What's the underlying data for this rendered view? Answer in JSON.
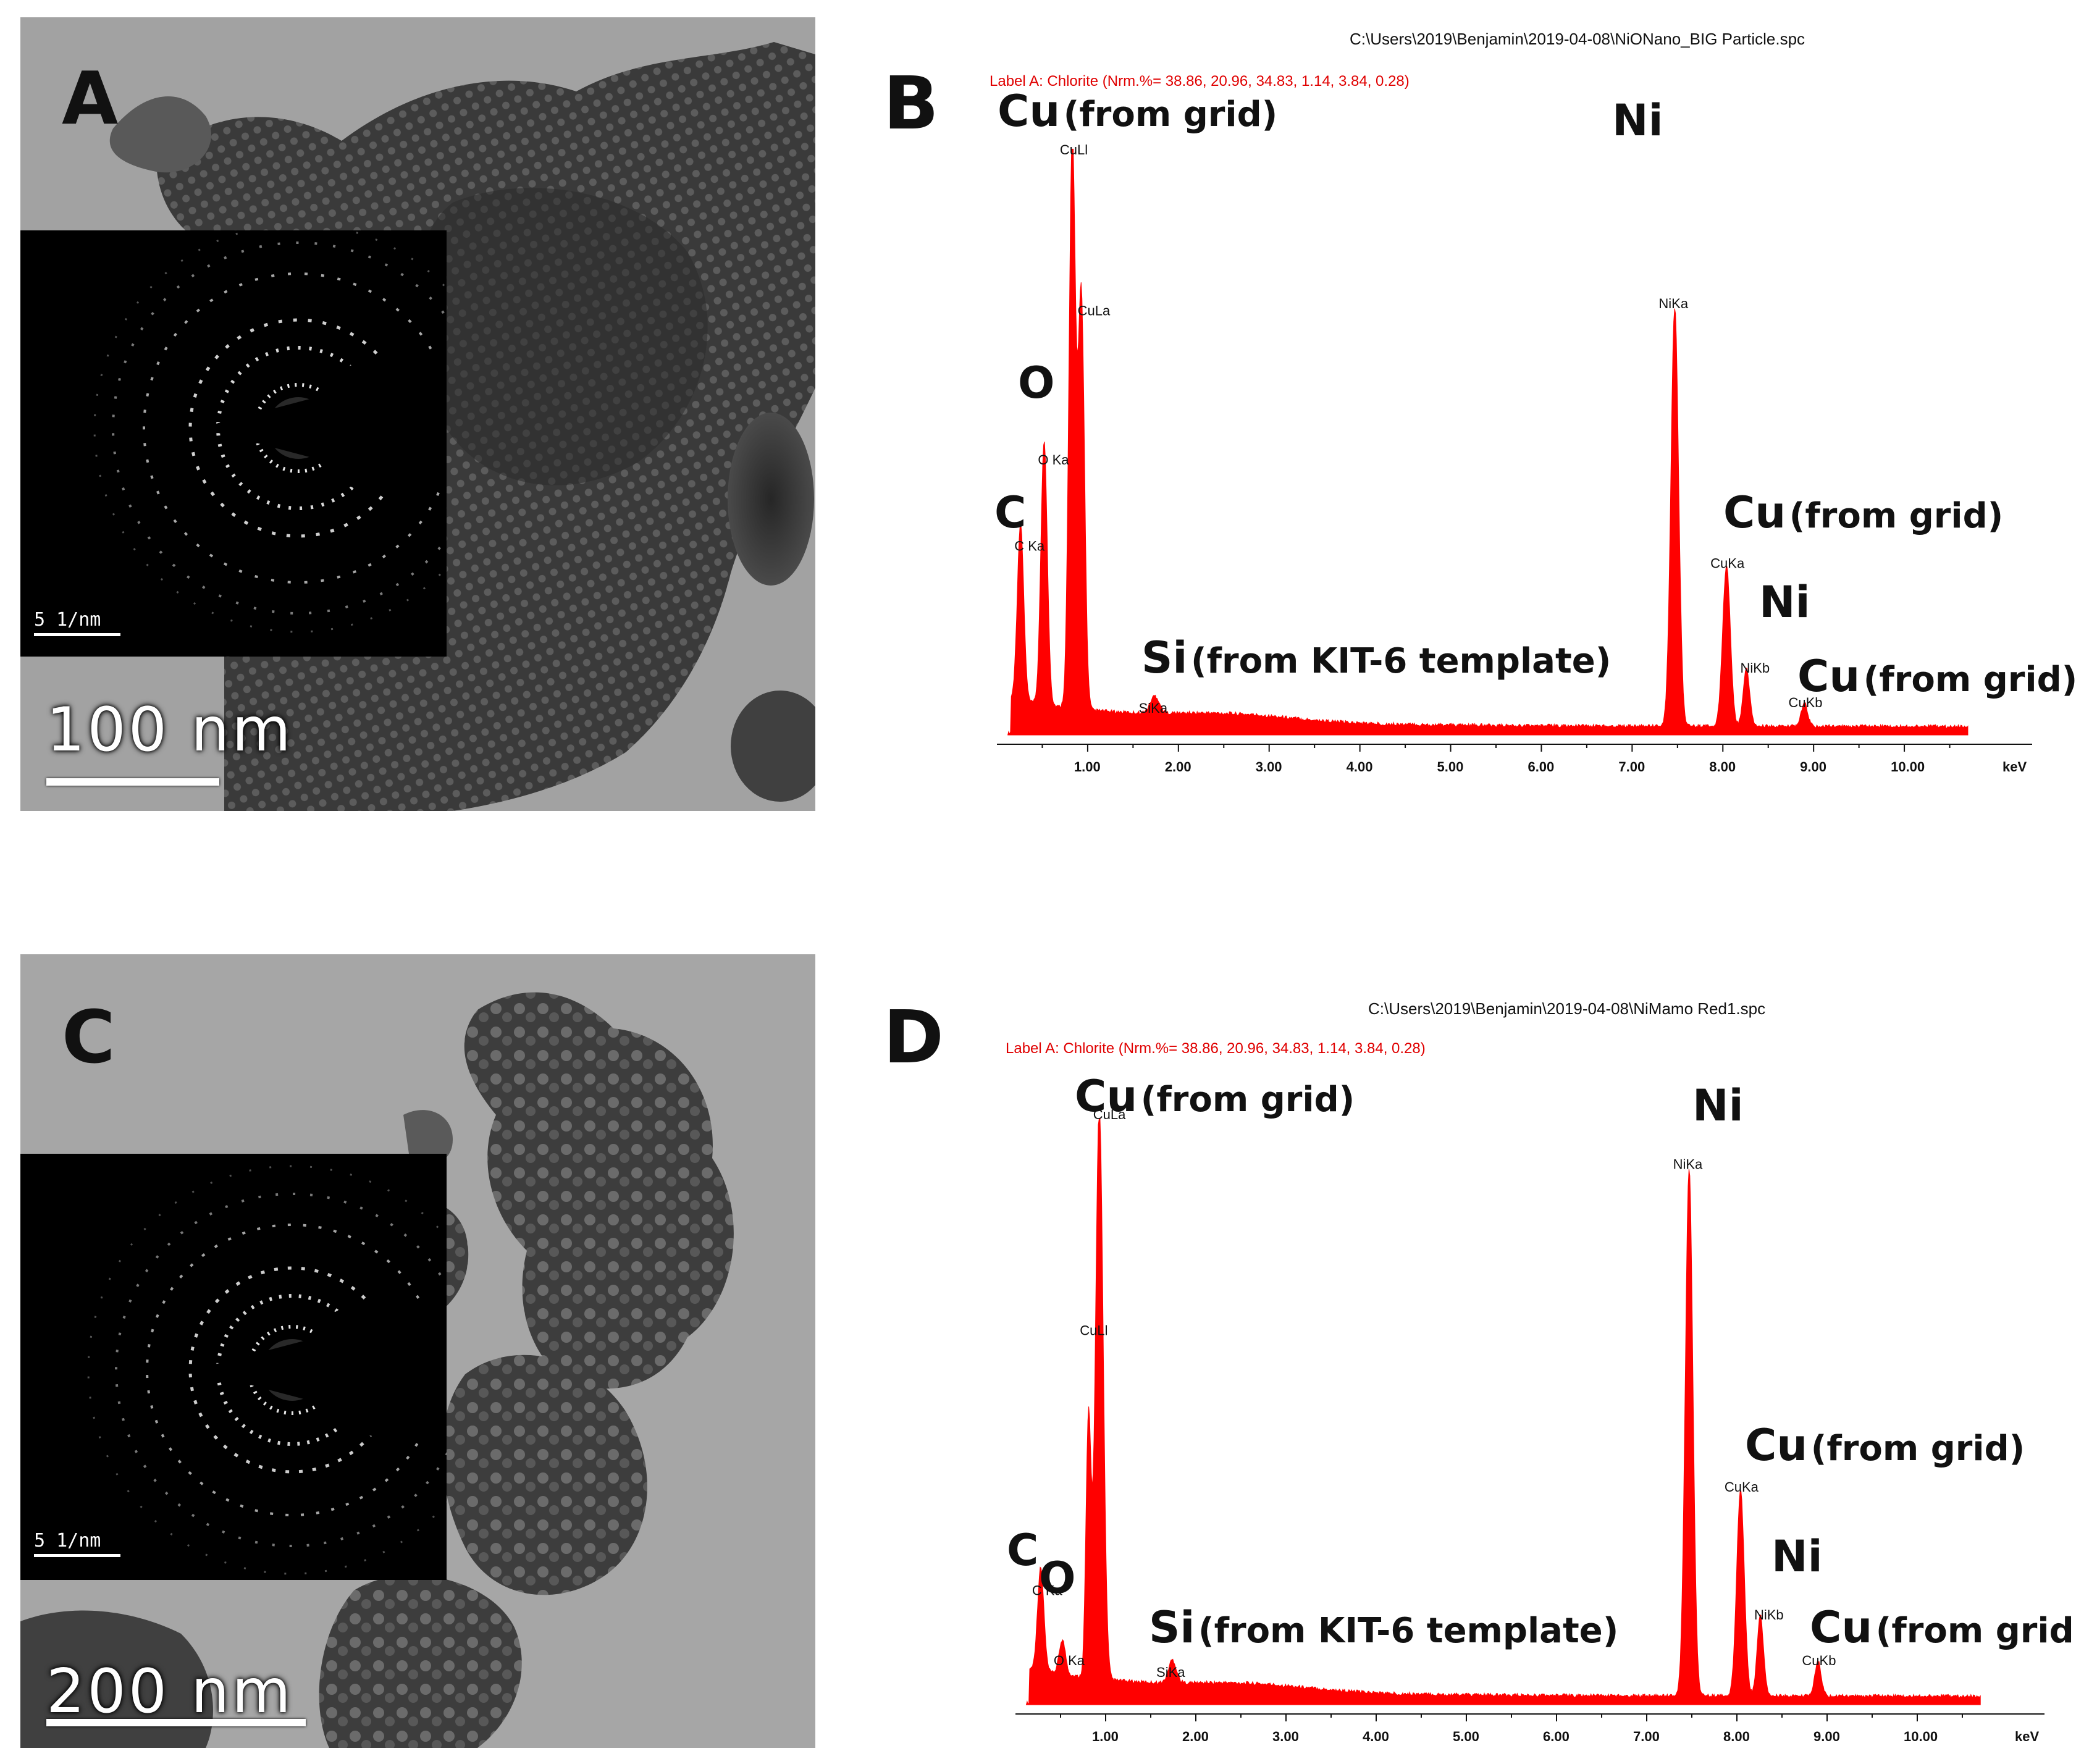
{
  "panels": {
    "A": {
      "letter": "A",
      "scale": "100 nm",
      "inset_scale": "5 1/nm"
    },
    "B": {
      "letter": "B",
      "file": "C:\\Users\\2019\\Benjamin\\2019-04-08\\NiONano_BIG Particle.spc",
      "label_a": "Label A: Chlorite (Nrm.%= 38.86, 20.96, 34.83, 1.14, 3.84, 0.28)"
    },
    "C": {
      "letter": "C",
      "scale": "200 nm",
      "inset_scale": "5 1/nm"
    },
    "D": {
      "letter": "D",
      "file": "C:\\Users\\2019\\Benjamin\\2019-04-08\\NiMamo Red1.spc",
      "label_a": "Label A: Chlorite (Nrm.%= 38.86, 20.96, 34.83, 1.14, 3.84, 0.28)"
    }
  },
  "annotations": {
    "cu": "Cu",
    "from_grid": "(from grid)",
    "ni": "Ni",
    "o": "O",
    "c": "C",
    "si": "Si",
    "from_template": "(from KIT-6 template)"
  },
  "colors": {
    "spectrum": "#ff0000",
    "label_a": "#e00000",
    "tem_background": "#9a9a9a",
    "inset": "#000000"
  },
  "chart_data": [
    {
      "type": "area",
      "panel": "B",
      "xlabel": "keV",
      "xlim": [
        0,
        11
      ],
      "x_ticks": [
        "1.00",
        "2.00",
        "3.00",
        "4.00",
        "5.00",
        "6.00",
        "7.00",
        "8.00",
        "9.00",
        "10.00"
      ],
      "y_relative_max": 1.0,
      "peaks": [
        {
          "label": "C Ka",
          "x": 0.26,
          "y": 0.31,
          "width": 0.05
        },
        {
          "label": "O Ka",
          "x": 0.52,
          "y": 0.46,
          "width": 0.05
        },
        {
          "label": "CuLl",
          "x": 0.83,
          "y": 1.0,
          "width": 0.05
        },
        {
          "label": "CuLa",
          "x": 0.93,
          "y": 0.72,
          "width": 0.05
        },
        {
          "label": "SiKa",
          "x": 1.74,
          "y": 0.03,
          "width": 0.07
        },
        {
          "label": "NiKa",
          "x": 7.47,
          "y": 0.73,
          "width": 0.06
        },
        {
          "label": "CuKa",
          "x": 8.04,
          "y": 0.28,
          "width": 0.06
        },
        {
          "label": "NiKb",
          "x": 8.26,
          "y": 0.1,
          "width": 0.05
        },
        {
          "label": "CuKb",
          "x": 8.9,
          "y": 0.04,
          "width": 0.05
        }
      ]
    },
    {
      "type": "area",
      "panel": "D",
      "xlabel": "keV",
      "xlim": [
        0,
        11
      ],
      "x_ticks": [
        "1.00",
        "2.00",
        "3.00",
        "4.00",
        "5.00",
        "6.00",
        "7.00",
        "8.00",
        "9.00",
        "10.00"
      ],
      "y_relative_max": 1.0,
      "peaks": [
        {
          "label": "C Ka",
          "x": 0.28,
          "y": 0.18,
          "width": 0.05
        },
        {
          "label": "O Ka",
          "x": 0.52,
          "y": 0.06,
          "width": 0.05
        },
        {
          "label": "CuLa",
          "x": 0.93,
          "y": 1.0,
          "width": 0.06
        },
        {
          "label": "CuLl",
          "x": 0.81,
          "y": 0.45,
          "width": 0.04
        },
        {
          "label": "SiKa",
          "x": 1.74,
          "y": 0.04,
          "width": 0.06
        },
        {
          "label": "NiKa",
          "x": 7.47,
          "y": 0.92,
          "width": 0.06
        },
        {
          "label": "CuKa",
          "x": 8.04,
          "y": 0.36,
          "width": 0.06
        },
        {
          "label": "NiKb",
          "x": 8.26,
          "y": 0.14,
          "width": 0.05
        },
        {
          "label": "CuKb",
          "x": 8.9,
          "y": 0.06,
          "width": 0.05
        }
      ]
    }
  ]
}
